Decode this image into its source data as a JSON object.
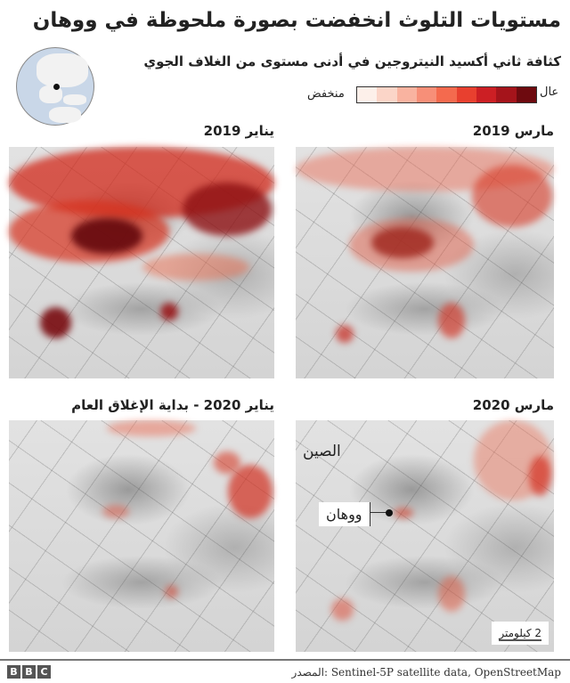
{
  "title": "مستويات التلوث انخفضت بصورة ملحوظة في ووهان",
  "subtitle": "كثافة ثاني أكسيد النيتروجين في أدنى مستوى من الغلاف الجوي",
  "legend": {
    "high": "عال",
    "low": "منخفض",
    "colors_low_to_high": [
      "#fdf0ea",
      "#fbd5c8",
      "#f9b3a0",
      "#f78f78",
      "#f46a4e",
      "#e8402f",
      "#cc1f24",
      "#a5141b",
      "#6e0a0f"
    ]
  },
  "panels": [
    {
      "title": "يناير 2019",
      "pollution_level": "very high"
    },
    {
      "title": "مارس 2019",
      "pollution_level": "high"
    },
    {
      "title": "يناير 2020 - بداية الإغلاق العام",
      "pollution_level": "low"
    },
    {
      "title": "مارس 2020",
      "pollution_level": "low"
    }
  ],
  "map_labels": {
    "country": "الصين",
    "city": "ووهان",
    "scale": "2 كيلومتر"
  },
  "footer": {
    "logo": "BBC",
    "logo_letters": [
      "B",
      "B",
      "C"
    ],
    "source": "المصدر: Sentinel-5P satellite data, OpenStreetMap"
  }
}
